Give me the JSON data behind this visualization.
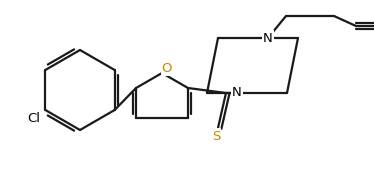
{
  "bg_color": "#ffffff",
  "line_color": "#1a1a1a",
  "N_color": "#1a1a1a",
  "O_color": "#cc8800",
  "S_color": "#cc8800",
  "line_width": 1.6,
  "figsize": [
    3.74,
    1.85
  ],
  "dpi": 100,
  "xlim": [
    0,
    374
  ],
  "ylim": [
    0,
    185
  ]
}
